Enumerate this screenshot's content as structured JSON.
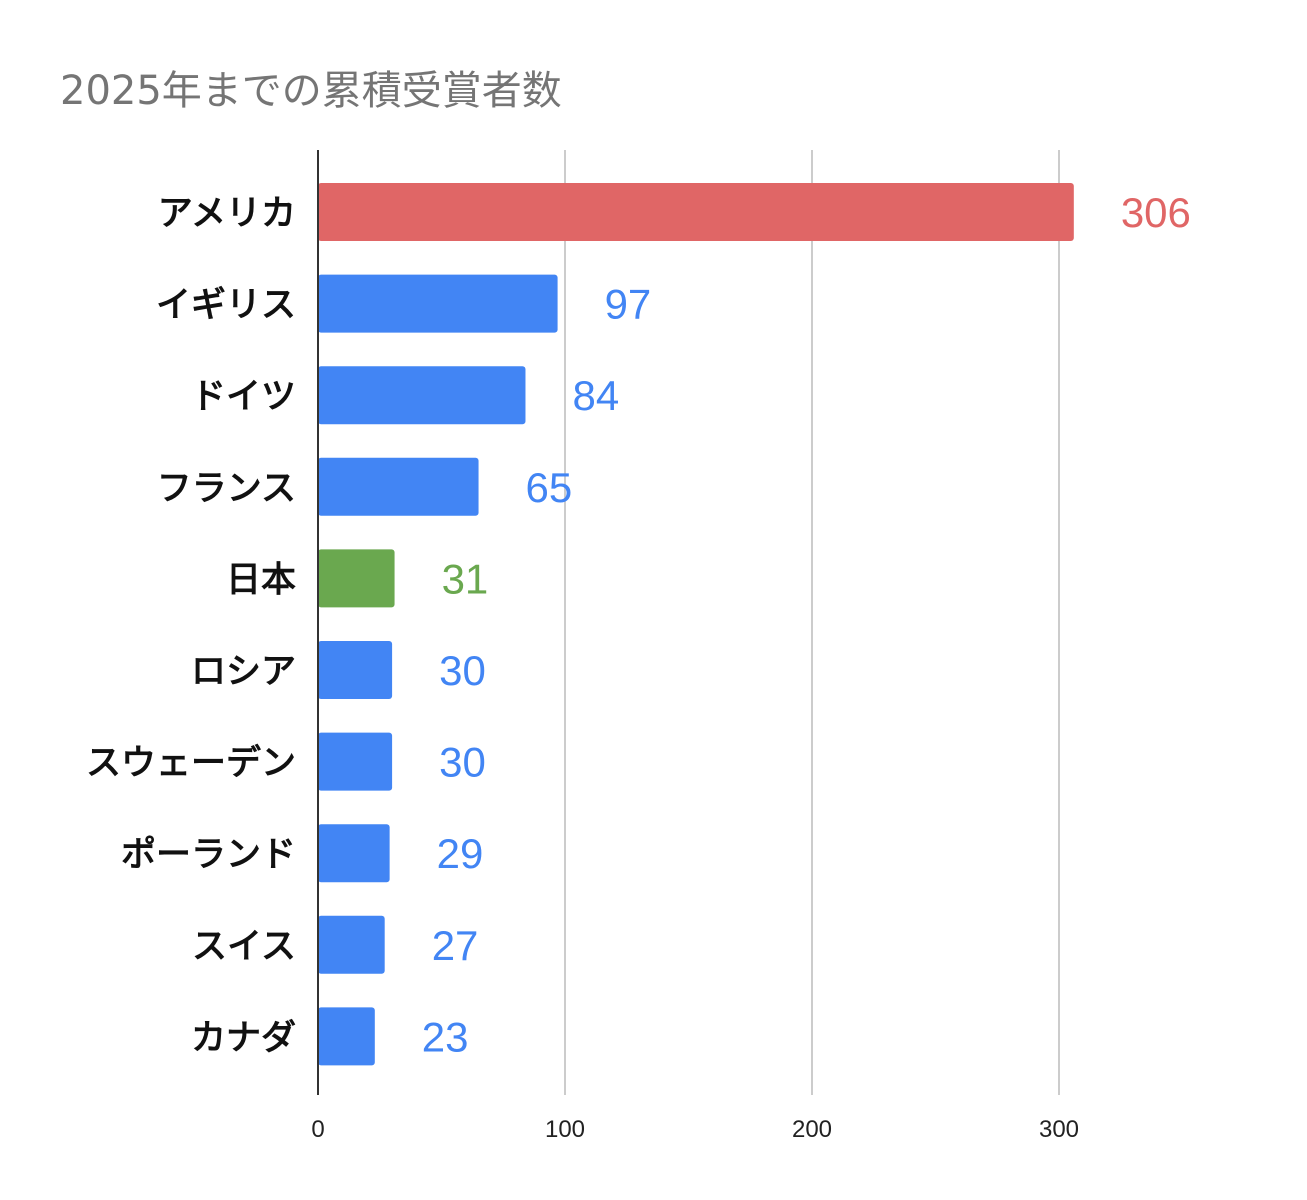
{
  "chart_data": {
    "type": "bar",
    "orientation": "horizontal",
    "title": "2025年までの累積受賞者数",
    "xlabel": "",
    "ylabel": "",
    "categories": [
      "アメリカ",
      "イギリス",
      "ドイツ",
      "フランス",
      "日本",
      "ロシア",
      "スウェーデン",
      "ポーランド",
      "スイス",
      "カナダ"
    ],
    "values": [
      306,
      97,
      84,
      65,
      31,
      30,
      30,
      29,
      27,
      23
    ],
    "bar_colors": [
      "#e06666",
      "#4285f4",
      "#4285f4",
      "#4285f4",
      "#6aa84f",
      "#4285f4",
      "#4285f4",
      "#4285f4",
      "#4285f4",
      "#4285f4"
    ],
    "xlim": [
      0,
      350
    ],
    "x_ticks": [
      0,
      100,
      200,
      300
    ],
    "grid": "vertical",
    "data_labels": true,
    "legend": "none"
  }
}
